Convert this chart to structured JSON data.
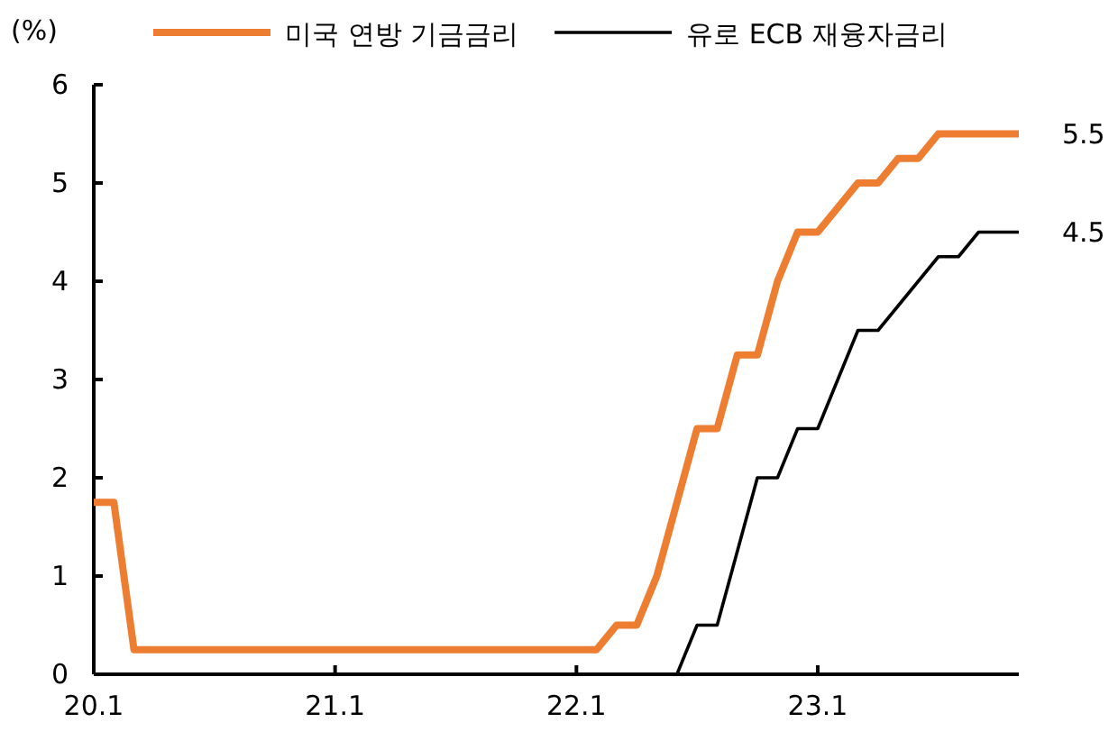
{
  "chart_data": {
    "type": "line",
    "ylabel": "(%)",
    "categories": [
      "20.1",
      null,
      null,
      null,
      null,
      null,
      null,
      null,
      null,
      null,
      null,
      null,
      "21.1",
      null,
      null,
      null,
      null,
      null,
      null,
      null,
      null,
      null,
      null,
      null,
      "22.1",
      null,
      null,
      null,
      null,
      null,
      null,
      null,
      null,
      null,
      null,
      null,
      "23.1",
      null,
      null,
      null,
      null,
      null,
      null,
      null,
      null,
      null,
      null
    ],
    "series": [
      {
        "name": "미국 연방 기금금리",
        "color": "#ed7d31",
        "values": [
          1.75,
          1.75,
          0.25,
          0.25,
          0.25,
          0.25,
          0.25,
          0.25,
          0.25,
          0.25,
          0.25,
          0.25,
          0.25,
          0.25,
          0.25,
          0.25,
          0.25,
          0.25,
          0.25,
          0.25,
          0.25,
          0.25,
          0.25,
          0.25,
          0.25,
          0.25,
          0.5,
          0.5,
          1.0,
          1.75,
          2.5,
          2.5,
          3.25,
          3.25,
          4.0,
          4.5,
          4.5,
          4.75,
          5.0,
          5.0,
          5.25,
          5.25,
          5.5,
          5.5,
          5.5,
          5.5,
          5.5
        ]
      },
      {
        "name": "유로 ECB 재융자금리",
        "color": "#000000",
        "values": [
          0,
          0,
          0,
          0,
          0,
          0,
          0,
          0,
          0,
          0,
          0,
          0,
          0,
          0,
          0,
          0,
          0,
          0,
          0,
          0,
          0,
          0,
          0,
          0,
          0,
          0,
          0,
          0,
          0,
          0,
          0.5,
          0.5,
          1.25,
          2.0,
          2.0,
          2.5,
          2.5,
          3.0,
          3.5,
          3.5,
          3.75,
          4.0,
          4.25,
          4.25,
          4.5,
          4.5,
          4.5
        ]
      }
    ],
    "ylim": [
      0,
      6
    ],
    "yticks": [
      0,
      1,
      2,
      3,
      4,
      5,
      6
    ],
    "annotations": [
      "5.5",
      "4.5"
    ],
    "legend": "top",
    "grid": false,
    "marker": "none",
    "line_style": "solid"
  }
}
